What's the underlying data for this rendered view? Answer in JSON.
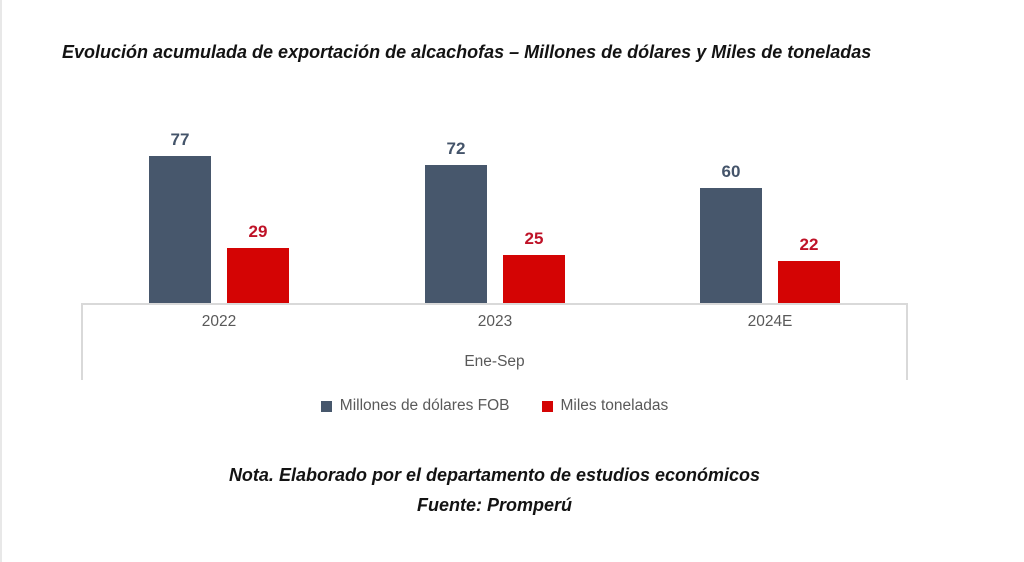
{
  "header": {
    "title": "Evolución acumulada de exportación de alcachofas – Millones de dólares y Miles de toneladas"
  },
  "chart_data": {
    "type": "bar",
    "title": "Evolución acumulada de exportación de alcachofas – Millones de dólares y Miles de toneladas",
    "categories": [
      "2022",
      "2023",
      "2024E"
    ],
    "x_group_label": "Ene-Sep",
    "series": [
      {
        "name": "Millones de dólares FOB",
        "values": [
          77,
          72,
          60
        ],
        "bar_color": "#47576C",
        "label_color": "#44546A"
      },
      {
        "name": "Miles toneladas",
        "values": [
          29,
          25,
          22
        ],
        "bar_color": "#D40404",
        "label_color": "#BF1328"
      }
    ],
    "ylim": [
      0,
      85
    ],
    "grid": false,
    "legend_position": "bottom",
    "data_labels": true
  },
  "footer": {
    "note": "Nota. Elaborado por el departamento de estudios económicos",
    "source": "Fuente: Promperú"
  },
  "colors": {
    "axis_border": "#D9D9D9",
    "axis_text": "#595959",
    "legend_text": "#595959",
    "title_text": "#131313"
  }
}
